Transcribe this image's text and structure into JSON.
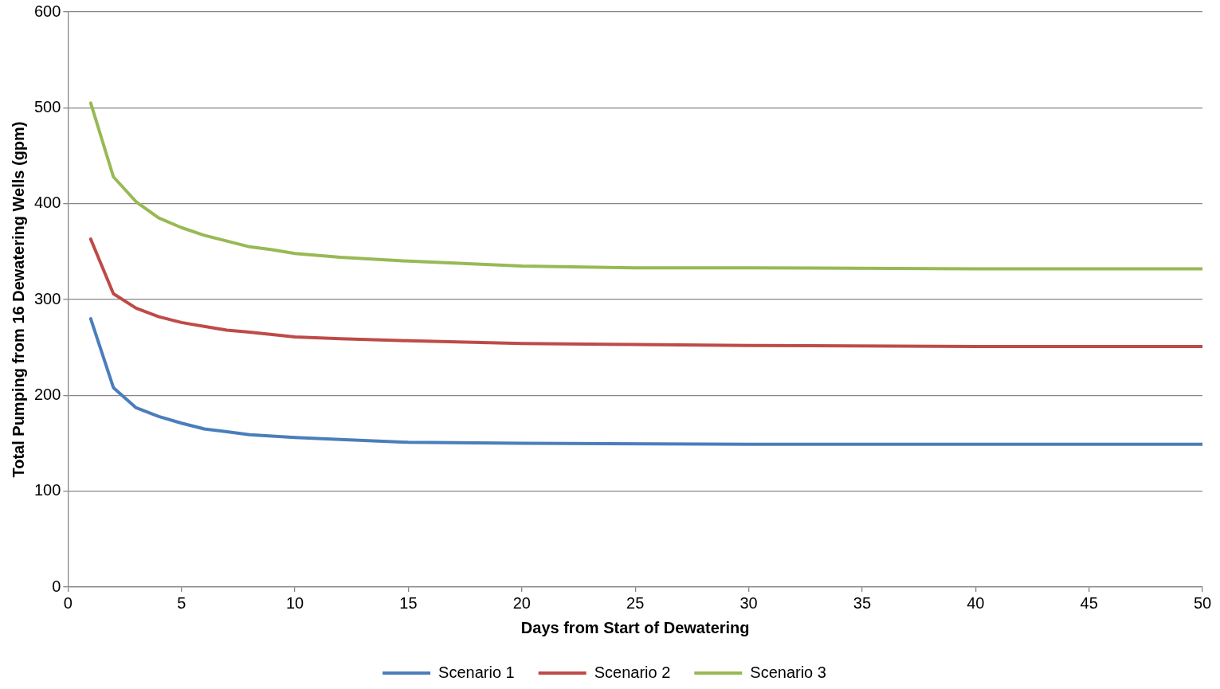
{
  "chart_data": {
    "type": "line",
    "xlabel": "Days from Start of Dewatering",
    "ylabel": "Total Pumping from 16 Dewatering Wells (gpm)",
    "xlim": [
      0,
      50
    ],
    "xticks": [
      0,
      5,
      10,
      15,
      20,
      25,
      30,
      35,
      40,
      45,
      50
    ],
    "ylim": [
      0,
      600
    ],
    "yticks": [
      0,
      100,
      200,
      300,
      400,
      500,
      600
    ],
    "grid": "y",
    "legend": "bottom",
    "marker": "none",
    "line_style": "solid",
    "series": [
      {
        "name": "Scenario 1",
        "color": "#4a7ebb",
        "x": [
          1,
          2,
          3,
          4,
          5,
          6,
          7,
          8,
          10,
          12,
          15,
          20,
          30,
          40,
          50
        ],
        "values": [
          280,
          208,
          187,
          178,
          171,
          165,
          162,
          159,
          156,
          154,
          151,
          150,
          149,
          149,
          149
        ]
      },
      {
        "name": "Scenario 2",
        "color": "#be4b48",
        "x": [
          1,
          2,
          3,
          4,
          5,
          6,
          7,
          8,
          10,
          12,
          15,
          20,
          25,
          30,
          40,
          50
        ],
        "values": [
          363,
          306,
          291,
          282,
          276,
          272,
          268,
          266,
          261,
          259,
          257,
          254,
          253,
          252,
          251,
          251
        ]
      },
      {
        "name": "Scenario 3",
        "color": "#98b954",
        "x": [
          1,
          2,
          3,
          4,
          5,
          6,
          7,
          8,
          9,
          10,
          12,
          15,
          20,
          25,
          30,
          40,
          50
        ],
        "values": [
          505,
          428,
          402,
          385,
          375,
          367,
          361,
          355,
          352,
          348,
          344,
          340,
          335,
          333,
          333,
          332,
          332
        ]
      }
    ]
  }
}
